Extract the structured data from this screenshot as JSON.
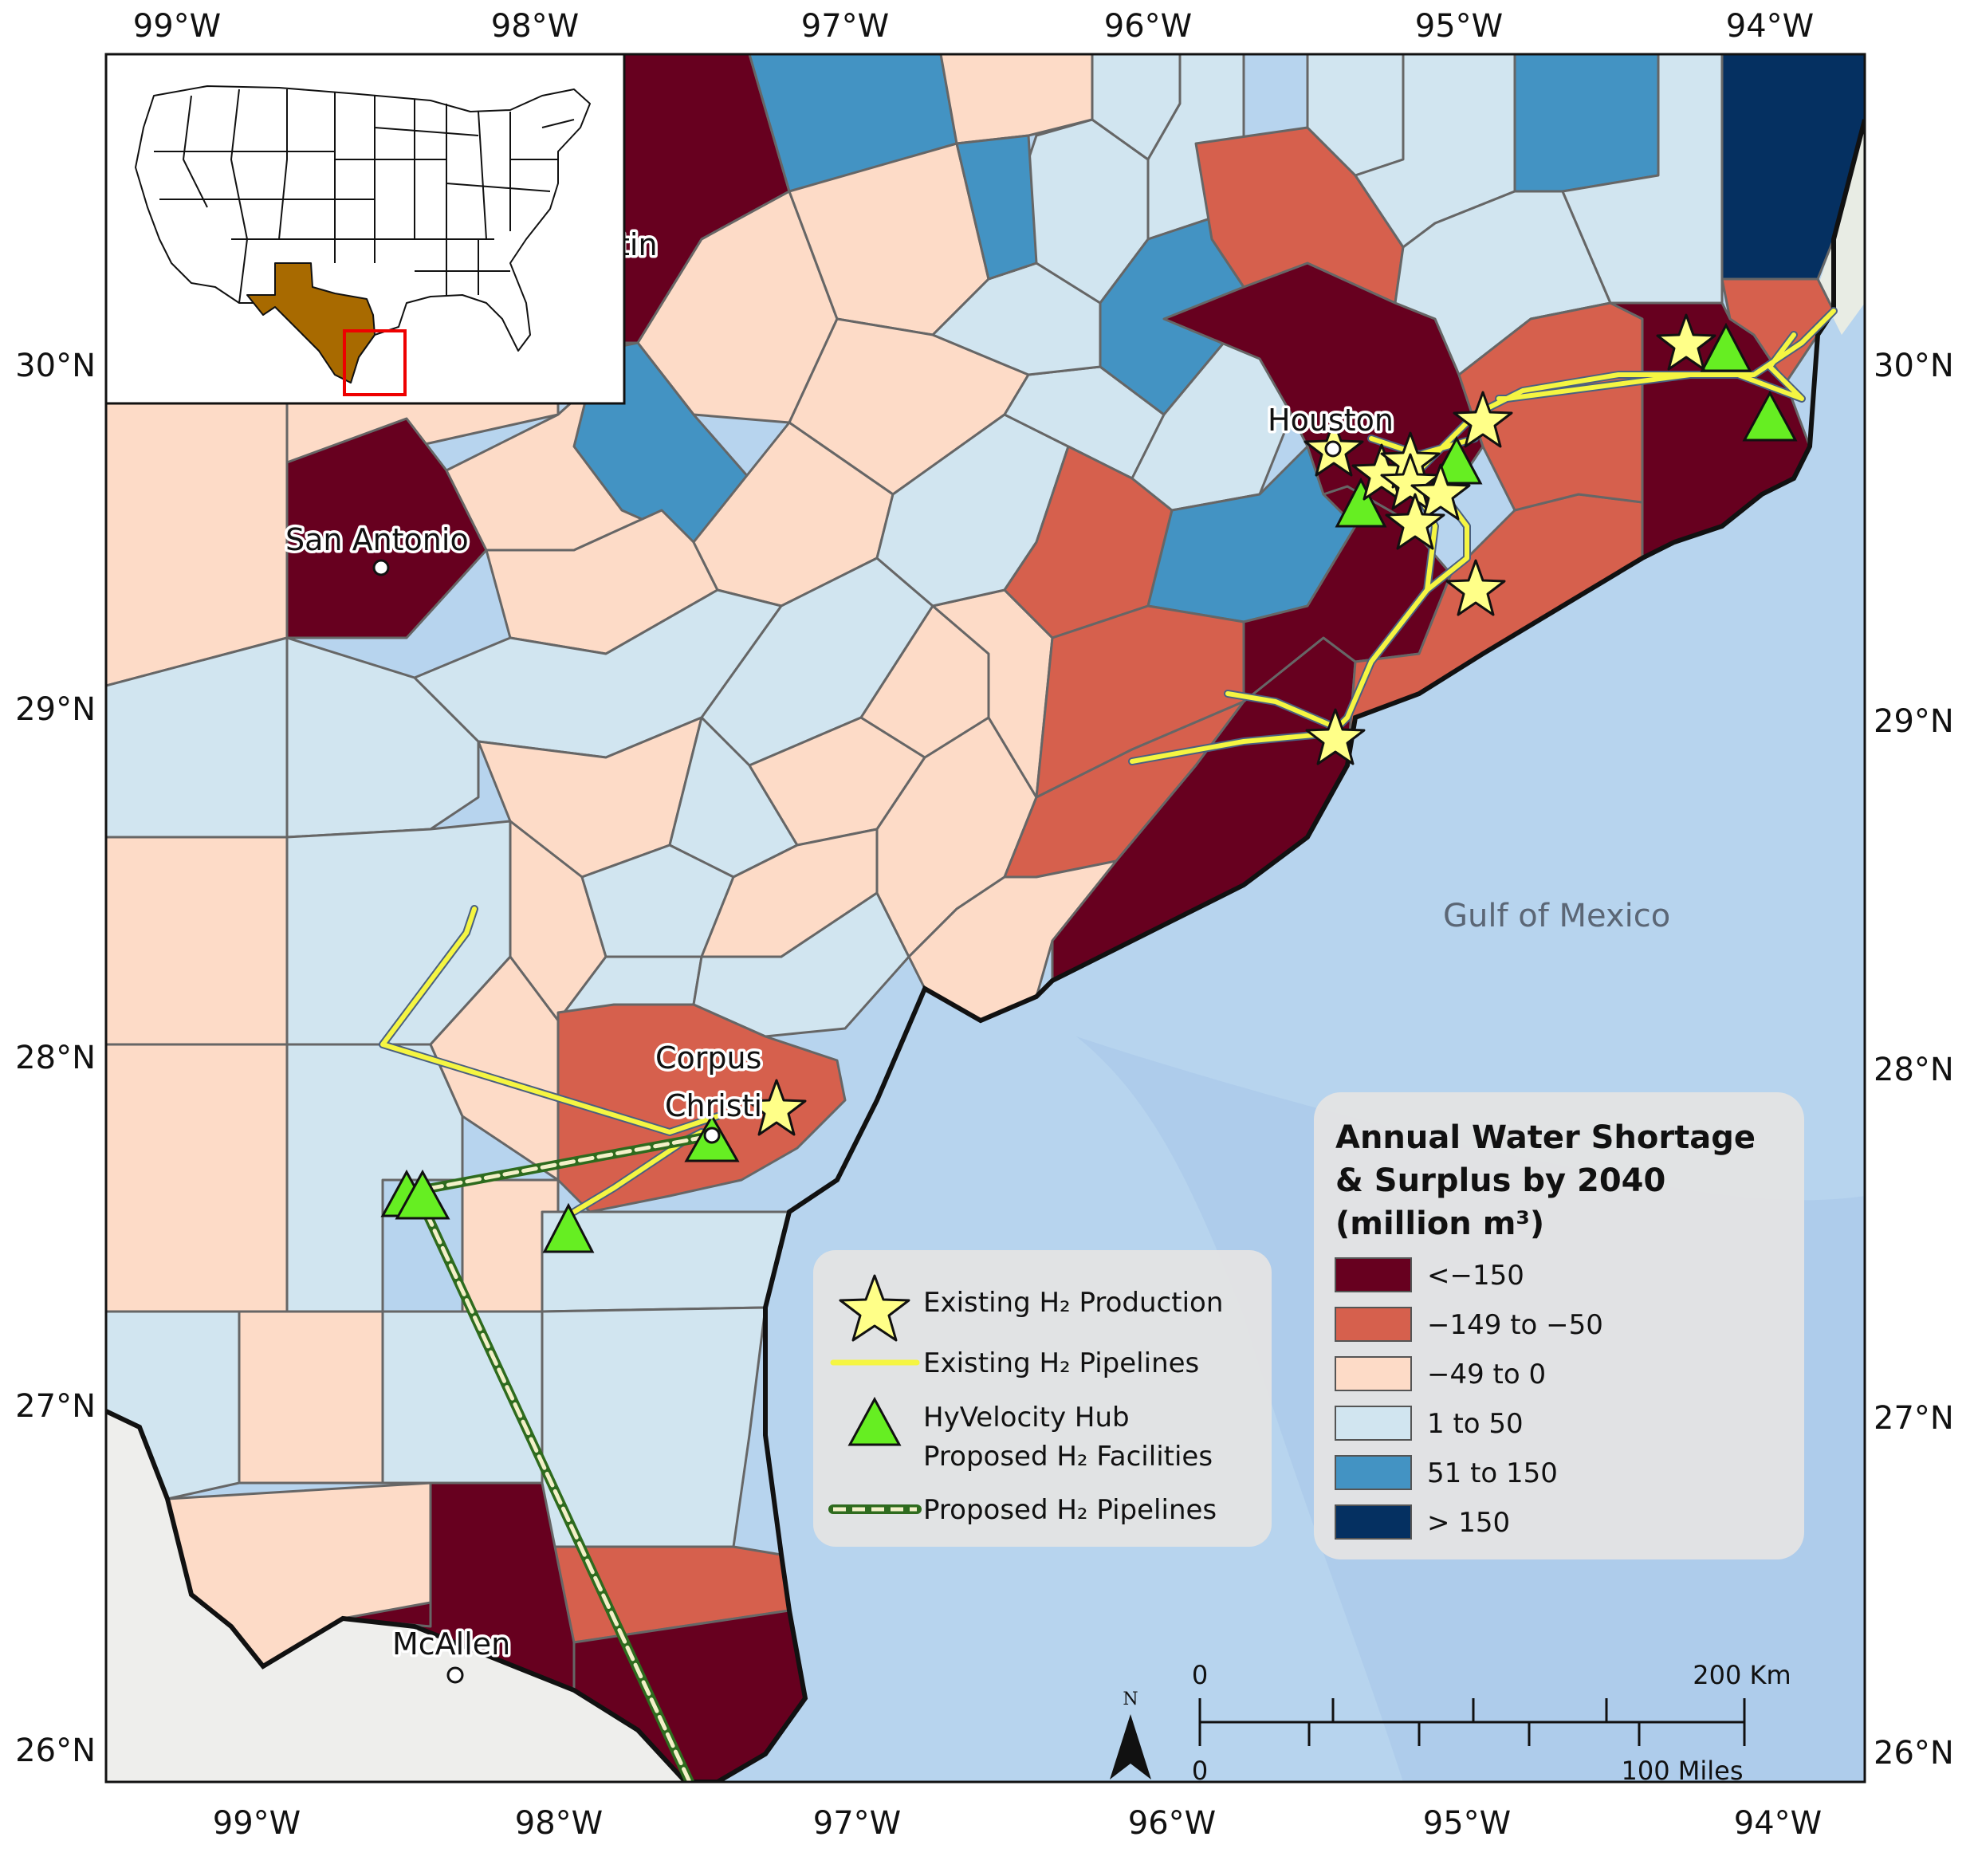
{
  "map": {
    "lon_labels": [
      "99°W",
      "98°W",
      "97°W",
      "96°W",
      "95°W",
      "94°W"
    ],
    "lat_labels": [
      "30°N",
      "29°N",
      "28°N",
      "27°N",
      "26°N"
    ],
    "water_label": "Gulf of Mexico",
    "cities": [
      {
        "name": "San Antonio"
      },
      {
        "name": "Houston"
      },
      {
        "name": "Corpus"
      },
      {
        "name": "Christi"
      },
      {
        "name": "McAllen"
      },
      {
        "name": "tin"
      }
    ]
  },
  "colors": {
    "lt_neg150": "#67001f",
    "neg149_to_neg50": "#d6604d",
    "neg49_to_0": "#fddbc7",
    "1_to_50": "#d1e5f0",
    "51_to_150": "#4393c3",
    "gt_150": "#053061",
    "ocean": "#b7d4ee",
    "land": "#eeeeec",
    "pipeline_existing": "#f5f542",
    "pipeline_proposed": "#2e6b1e",
    "facility": "#66ee22",
    "production": "#ffff88"
  },
  "legend_symbols": {
    "items": [
      {
        "label": "Existing H₂ Production"
      },
      {
        "label": "Existing H₂ Pipelines"
      },
      {
        "label": "HyVelocity Hub"
      },
      {
        "label": "Proposed H₂ Facilities"
      },
      {
        "label": "Proposed H₂ Pipelines"
      }
    ]
  },
  "legend_water": {
    "title_lines": [
      "Annual Water Shortage",
      "& Surplus by 2040",
      "(million m³)"
    ],
    "classes": [
      {
        "label": "<−150"
      },
      {
        "label": "−149 to −50"
      },
      {
        "label": "−49 to 0"
      },
      {
        "label": "1 to 50"
      },
      {
        "label": "51 to 150"
      },
      {
        "label": "> 150"
      }
    ]
  },
  "scalebar": {
    "km_zero": "0",
    "km_end": "200 Km",
    "mi_zero": "0",
    "mi_end": "100 Miles",
    "north": "N"
  }
}
